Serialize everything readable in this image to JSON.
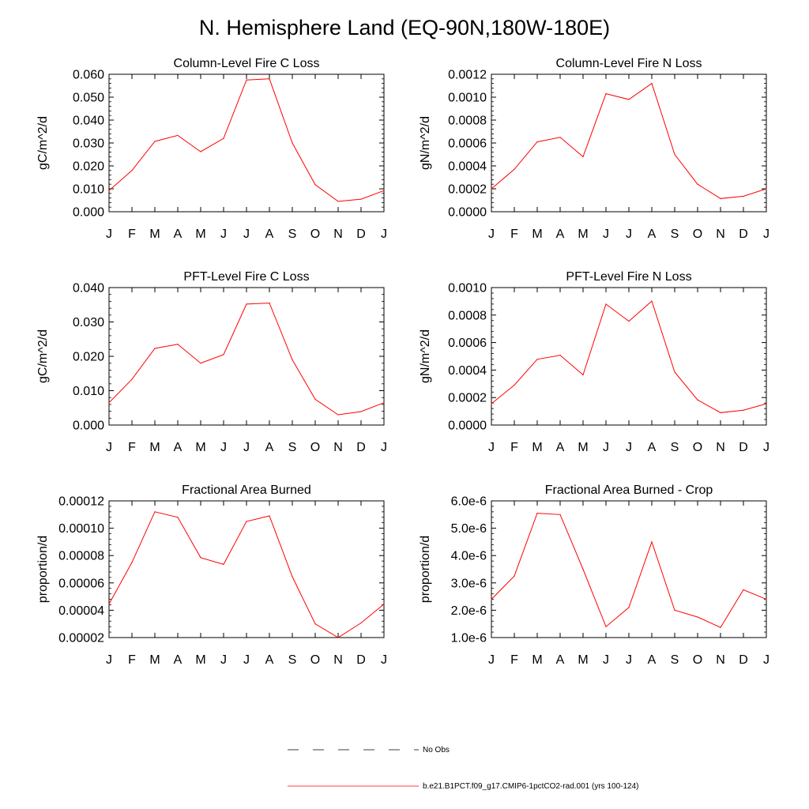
{
  "figure": {
    "title": "N. Hemisphere Land (EQ-90N,180W-180E)"
  },
  "legend": {
    "entries": [
      {
        "label": "No Obs",
        "style": "dashed",
        "color": "#000000"
      },
      {
        "label": "b.e21.B1PCT.f09_g17.CMIP6-1pctCO2-rad.001 (yrs 100-124)",
        "style": "solid",
        "color": "#ff0000"
      }
    ]
  },
  "colors": {
    "series": "#ff0000",
    "axis": "#000000"
  },
  "chart_data": [
    {
      "type": "line",
      "title": "Column-Level Fire C Loss",
      "ylabel": "gC/m^2/d",
      "categories": [
        "J",
        "F",
        "M",
        "A",
        "M",
        "J",
        "J",
        "A",
        "S",
        "O",
        "N",
        "D",
        "J"
      ],
      "ylim": [
        0,
        0.06
      ],
      "yticks": [
        "0.000",
        "0.010",
        "0.020",
        "0.030",
        "0.040",
        "0.050",
        "0.060"
      ],
      "series": [
        {
          "values": [
            0.0092,
            0.018,
            0.0307,
            0.0333,
            0.0262,
            0.032,
            0.0575,
            0.058,
            0.03,
            0.0118,
            0.0045,
            0.0055,
            0.0092
          ]
        }
      ]
    },
    {
      "type": "line",
      "title": "Column-Level Fire N Loss",
      "ylabel": "gN/m^2/d",
      "categories": [
        "J",
        "F",
        "M",
        "A",
        "M",
        "J",
        "J",
        "A",
        "S",
        "O",
        "N",
        "D",
        "J"
      ],
      "ylim": [
        0,
        0.0012
      ],
      "yticks": [
        "0.0000",
        "0.0002",
        "0.0004",
        "0.0006",
        "0.0008",
        "0.0010",
        "0.0012"
      ],
      "series": [
        {
          "values": [
            0.0002,
            0.00037,
            0.00061,
            0.00065,
            0.00048,
            0.00103,
            0.00098,
            0.00112,
            0.0005,
            0.00024,
            0.000115,
            0.000135,
            0.0002
          ]
        }
      ]
    },
    {
      "type": "line",
      "title": "PFT-Level Fire C Loss",
      "ylabel": "gC/m^2/d",
      "categories": [
        "J",
        "F",
        "M",
        "A",
        "M",
        "J",
        "J",
        "A",
        "S",
        "O",
        "N",
        "D",
        "J"
      ],
      "ylim": [
        0,
        0.04
      ],
      "yticks": [
        "0.000",
        "0.010",
        "0.020",
        "0.030",
        "0.040"
      ],
      "series": [
        {
          "values": [
            0.0065,
            0.0133,
            0.0223,
            0.0235,
            0.018,
            0.0205,
            0.0352,
            0.0355,
            0.019,
            0.0075,
            0.003,
            0.0039,
            0.0065
          ]
        }
      ]
    },
    {
      "type": "line",
      "title": "PFT-Level Fire N Loss",
      "ylabel": "gN/m^2/d",
      "categories": [
        "J",
        "F",
        "M",
        "A",
        "M",
        "J",
        "J",
        "A",
        "S",
        "O",
        "N",
        "D",
        "J"
      ],
      "ylim": [
        0,
        0.001
      ],
      "yticks": [
        "0.0000",
        "0.0002",
        "0.0004",
        "0.0006",
        "0.0008",
        "0.0010"
      ],
      "series": [
        {
          "values": [
            0.000155,
            0.00029,
            0.000478,
            0.000508,
            0.000365,
            0.00088,
            0.000755,
            0.000902,
            0.000385,
            0.000183,
            9e-05,
            0.000108,
            0.000155
          ]
        }
      ]
    },
    {
      "type": "line",
      "title": "Fractional Area Burned",
      "ylabel": "proportion/d",
      "categories": [
        "J",
        "F",
        "M",
        "A",
        "M",
        "J",
        "J",
        "A",
        "S",
        "O",
        "N",
        "D",
        "J"
      ],
      "ylim": [
        2e-05,
        0.00012
      ],
      "yticks": [
        "0.00002",
        "0.00004",
        "0.00006",
        "0.00008",
        "0.00010",
        "0.00012"
      ],
      "series": [
        {
          "values": [
            4.45e-05,
            7.5e-05,
            0.000112,
            0.000108,
            7.85e-05,
            7.35e-05,
            0.000105,
            0.000109,
            6.45e-05,
            3e-05,
            2e-05,
            3.07e-05,
            4.45e-05
          ]
        }
      ]
    },
    {
      "type": "line",
      "title": "Fractional Area Burned - Crop",
      "ylabel": "proportion/d",
      "categories": [
        "J",
        "F",
        "M",
        "A",
        "M",
        "J",
        "J",
        "A",
        "S",
        "O",
        "N",
        "D",
        "J"
      ],
      "ylim": [
        1e-06,
        6e-06
      ],
      "yticks": [
        "1.0e-6",
        "2.0e-6",
        "3.0e-6",
        "4.0e-6",
        "5.0e-6",
        "6.0e-6"
      ],
      "series": [
        {
          "values": [
            2.4e-06,
            3.25e-06,
            5.55e-06,
            5.5e-06,
            3.5e-06,
            1.4e-06,
            2.1e-06,
            4.5e-06,
            2e-06,
            1.75e-06,
            1.37e-06,
            2.75e-06,
            2.4e-06
          ]
        }
      ]
    }
  ]
}
